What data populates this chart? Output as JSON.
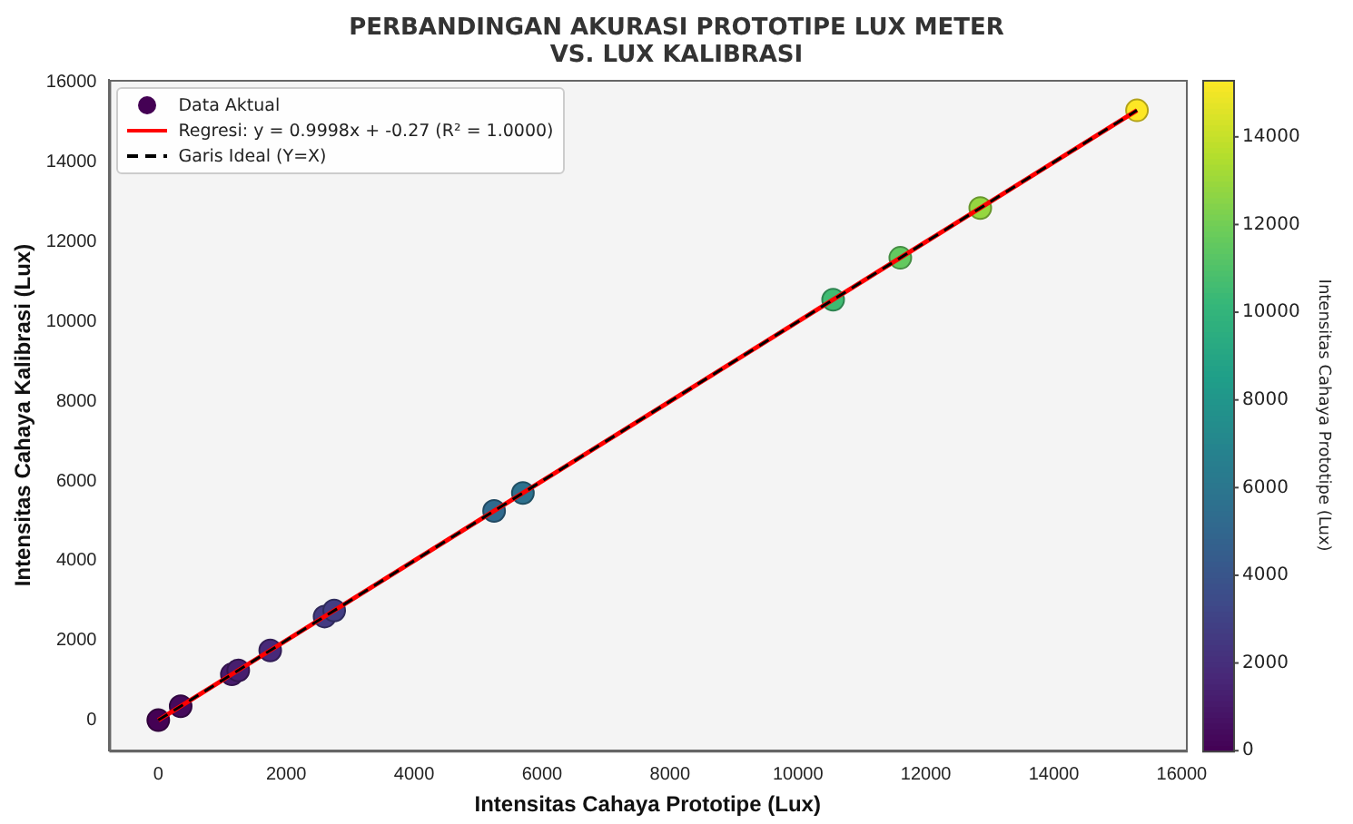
{
  "chart_data": {
    "type": "scatter",
    "title": "PERBANDINGAN AKURASI PROTOTIPE LUX METER\nVS. LUX KALIBRASI",
    "xlabel": "Intensitas Cahaya Prototipe (Lux)",
    "ylabel": "Intensitas Cahaya Kalibrasi (Lux)",
    "clabel": "Intensitas Cahaya Prototipe (Lux)",
    "xlim": [
      -765,
      16065
    ],
    "ylim": [
      -765,
      16065
    ],
    "xticks": [
      0,
      2000,
      4000,
      6000,
      8000,
      10000,
      12000,
      14000,
      16000
    ],
    "yticks": [
      0,
      2000,
      4000,
      6000,
      8000,
      10000,
      12000,
      14000,
      16000
    ],
    "clim": [
      0,
      15300
    ],
    "cticks": [
      0,
      2000,
      4000,
      6000,
      8000,
      10000,
      12000,
      14000
    ],
    "grid": false,
    "legend": "top left",
    "series": [
      {
        "name": "Data Aktual",
        "marker": "circle",
        "colors": [
          "#440154",
          "#45095b",
          "#471b6c",
          "#471e6e",
          "#482979",
          "#433a81",
          "#423d83",
          "#306a8e",
          "#2d718e",
          "#40bb72",
          "#63c95f",
          "#95d740",
          "#fde725"
        ],
        "x": [
          0,
          350,
          1150,
          1250,
          1750,
          2600,
          2750,
          5250,
          5700,
          10550,
          11600,
          12850,
          15300
        ],
        "values": [
          0,
          350,
          1150,
          1250,
          1750,
          2600,
          2750,
          5250,
          5700,
          10550,
          11600,
          12850,
          15300
        ],
        "cvalues": [
          0,
          350,
          1150,
          1250,
          1750,
          2600,
          2750,
          5250,
          5700,
          10550,
          11600,
          12850,
          15300
        ]
      },
      {
        "name": "Regresi: y = 0.9998x + -0.27 (R² = 1.0000)",
        "type": "line",
        "color": "#ff0000",
        "line_style": "solid",
        "x": [
          0,
          15300
        ],
        "values": [
          0,
          15300
        ]
      },
      {
        "name": "Garis Ideal (Y=X)",
        "type": "line",
        "color": "#000000",
        "line_style": "dashed",
        "x": [
          0,
          15300
        ],
        "values": [
          0,
          15300
        ]
      }
    ]
  }
}
